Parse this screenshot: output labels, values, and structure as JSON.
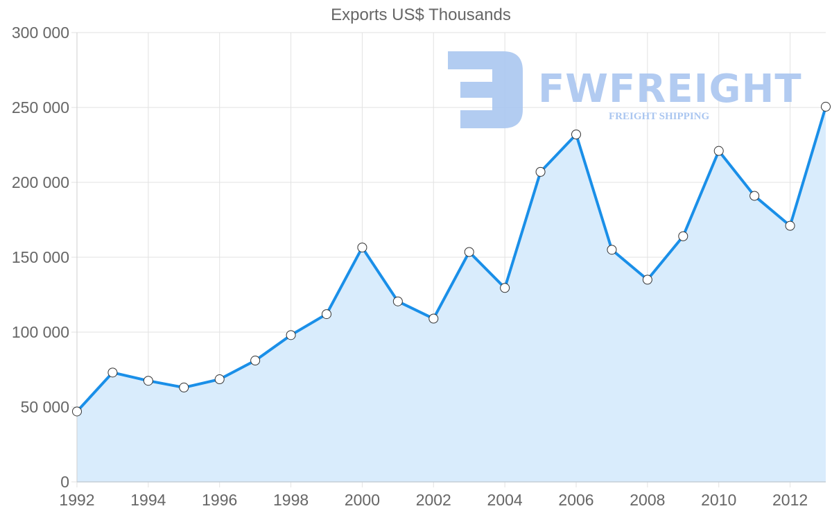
{
  "chart": {
    "title": "Exports US$ Thousands",
    "y_ticks": [
      "0",
      "50 000",
      "100 000",
      "150 000",
      "200 000",
      "250 000",
      "300 000"
    ],
    "x_ticks": [
      "1992",
      "1994",
      "1996",
      "1998",
      "2000",
      "2002",
      "2004",
      "2006",
      "2008",
      "2010",
      "2012"
    ],
    "line_color": "#1a8fe8",
    "fill_color": "#d9ecfc",
    "grid_color": "#e2e2e2"
  },
  "watermark": {
    "brand": "FWFREIGHT",
    "tagline": "FREIGHT SHIPPING",
    "color": "#aac6f0"
  },
  "chart_data": {
    "type": "area",
    "title": "Exports US$ Thousands",
    "xlabel": "",
    "ylabel": "",
    "x": [
      1992,
      1993,
      1994,
      1995,
      1996,
      1997,
      1998,
      1999,
      2000,
      2001,
      2002,
      2003,
      2004,
      2005,
      2006,
      2007,
      2008,
      2009,
      2010,
      2011,
      2012,
      2013
    ],
    "series": [
      {
        "name": "Exports US$ Thousands",
        "values": [
          47000,
          73000,
          67500,
          63000,
          68500,
          81000,
          98000,
          112000,
          156500,
          120500,
          109000,
          153500,
          129500,
          207000,
          232000,
          155000,
          135000,
          164000,
          221000,
          191000,
          171000,
          250500
        ]
      }
    ],
    "xlim": [
      1992,
      2013
    ],
    "ylim": [
      0,
      300000
    ],
    "y_tick_step": 50000,
    "x_tick_step": 2,
    "grid": true,
    "legend": "none",
    "markers": "white circles with dark outline"
  }
}
